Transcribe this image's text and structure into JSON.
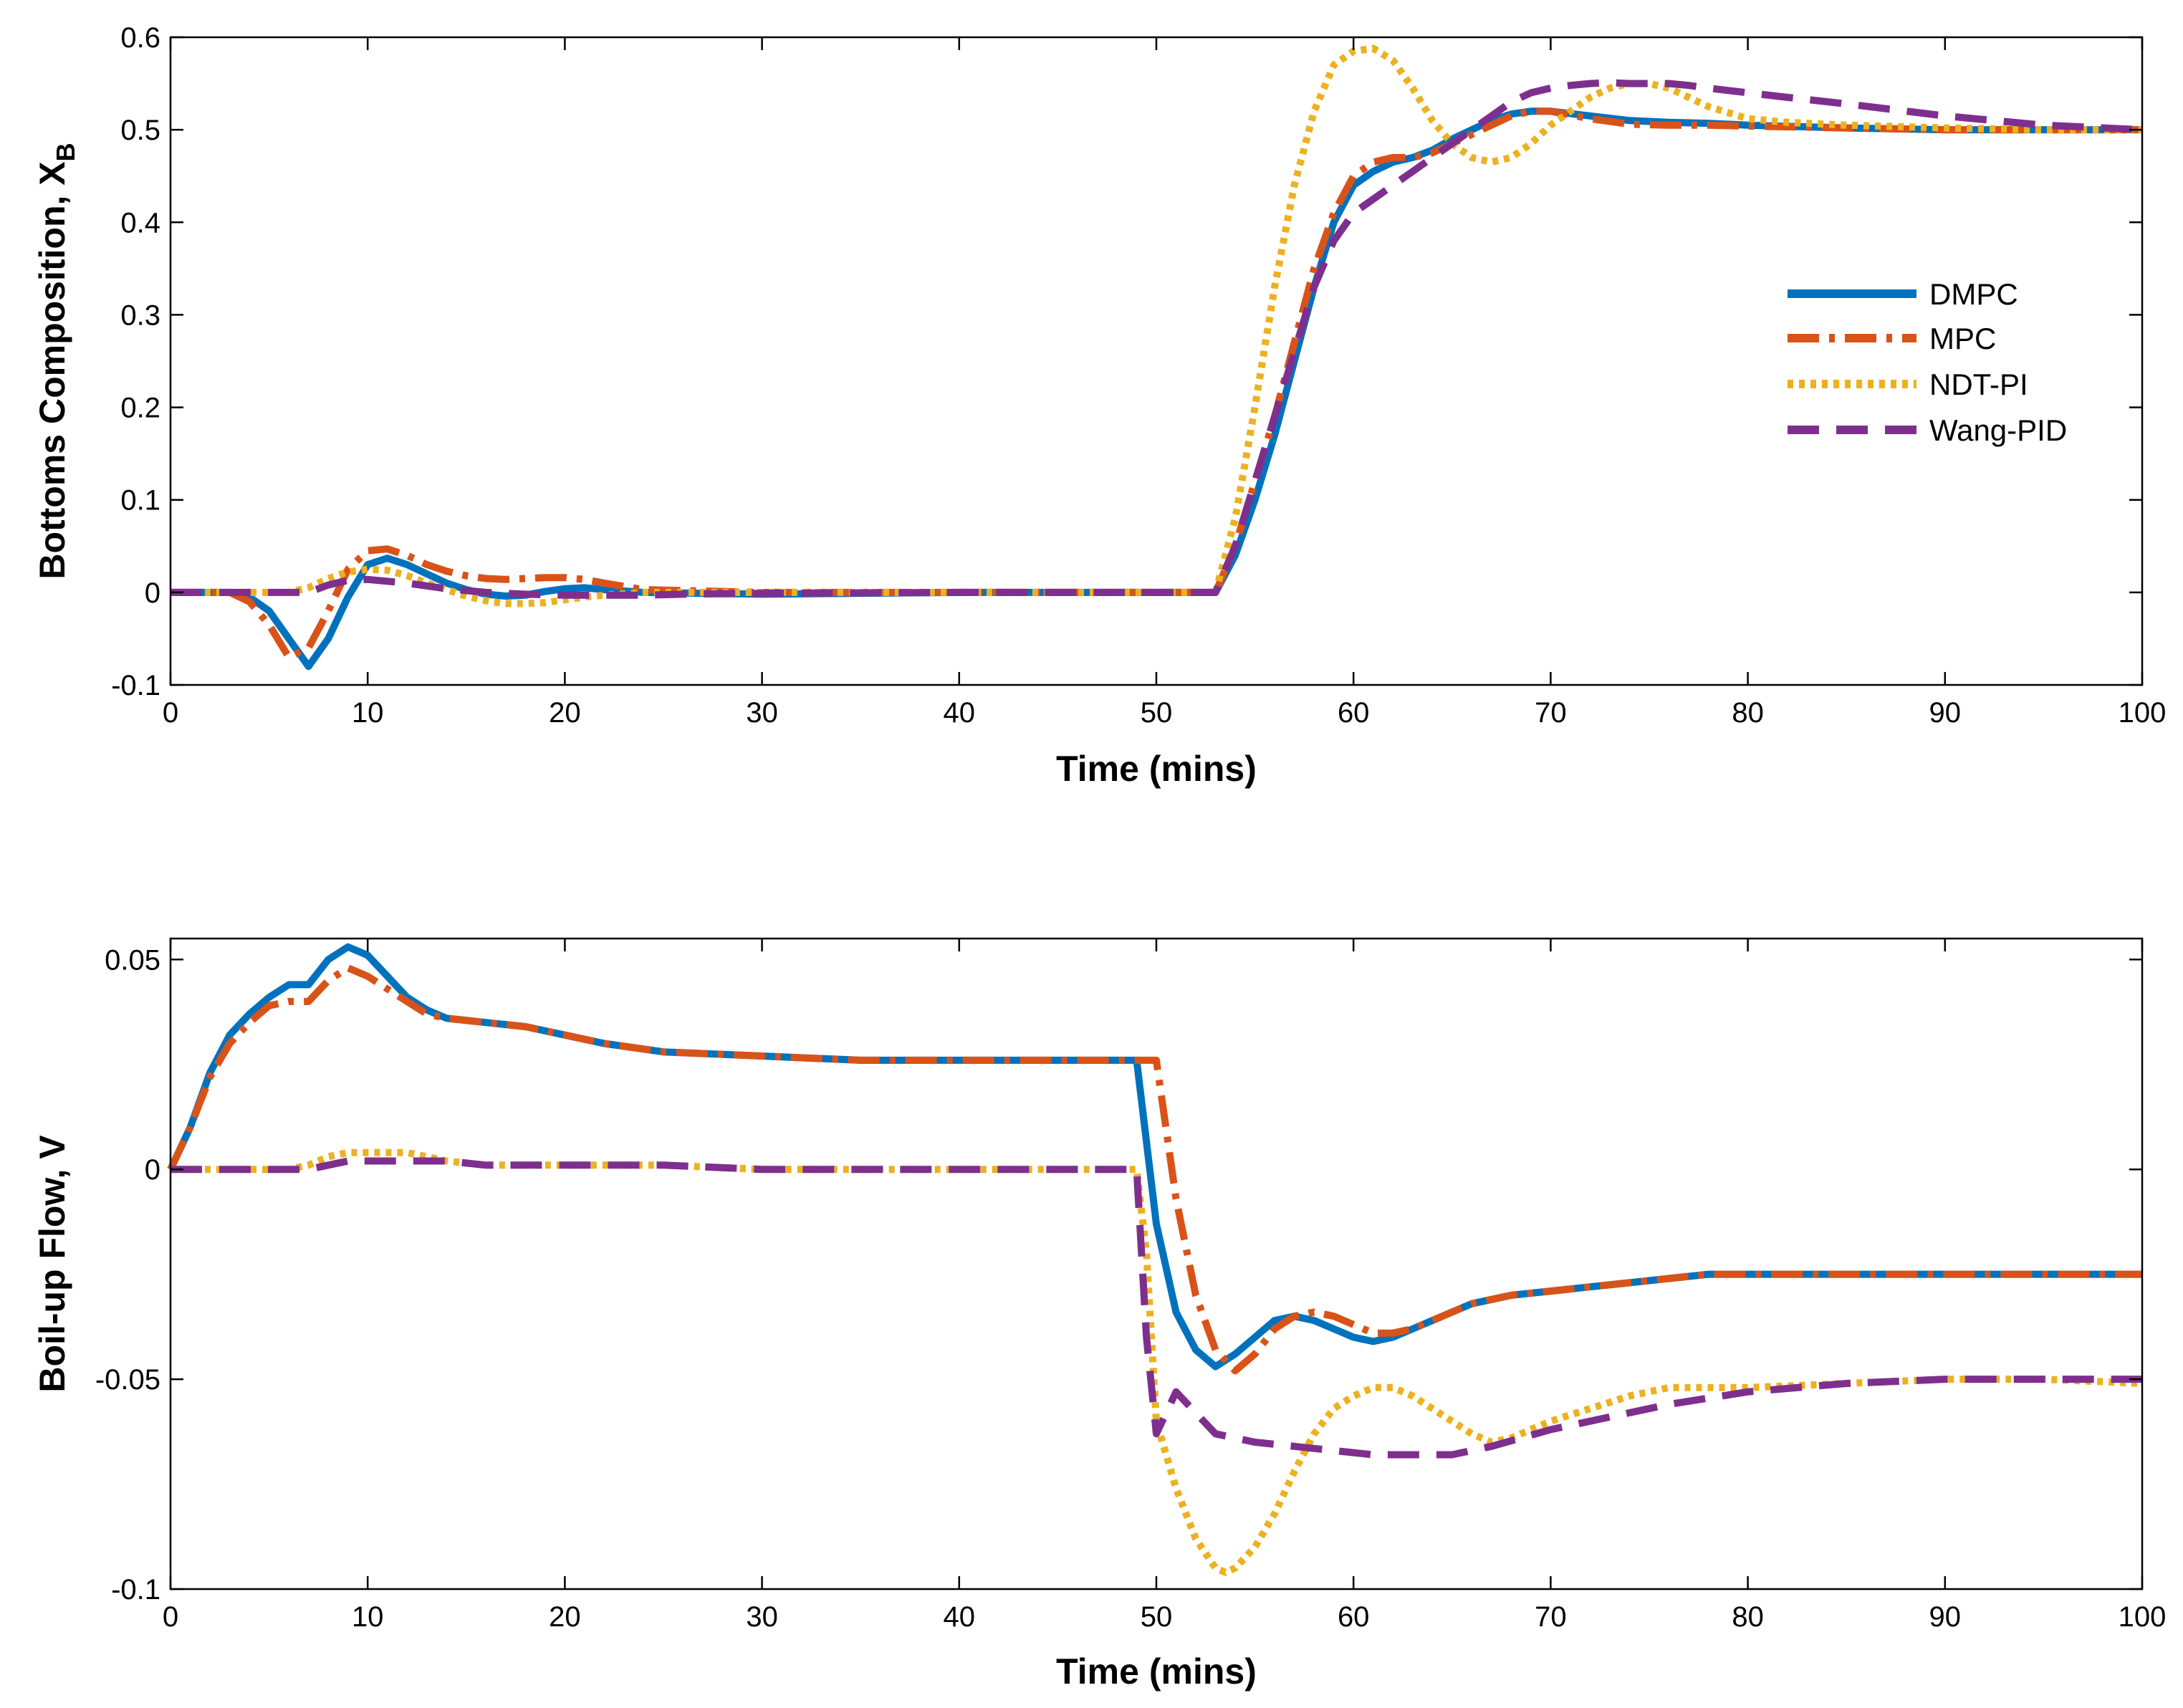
{
  "chart_data": [
    {
      "type": "line",
      "title": "",
      "xlabel": "Time (mins)",
      "ylabel": "Bottoms Composition, X",
      "ylabel_subscript": "B",
      "xlim": [
        0,
        100
      ],
      "ylim": [
        -0.1,
        0.6
      ],
      "xticks": [
        0,
        10,
        20,
        30,
        40,
        50,
        60,
        70,
        80,
        90,
        100
      ],
      "yticks": [
        -0.1,
        0,
        0.1,
        0.2,
        0.3,
        0.4,
        0.5,
        0.6
      ],
      "xtick_labels": [
        "0",
        "10",
        "20",
        "30",
        "40",
        "50",
        "60",
        "70",
        "80",
        "90",
        "100"
      ],
      "ytick_labels": [
        "-0.1",
        "0",
        "0.1",
        "0.2",
        "0.3",
        "0.4",
        "0.5",
        "0.6"
      ],
      "grid": false,
      "legend_position": "right",
      "series": [
        {
          "name": "DMPC",
          "color": "#0072BD",
          "style": "solid",
          "x": [
            0,
            3,
            4,
            5,
            6,
            7,
            8,
            9,
            10,
            11,
            12,
            13,
            14,
            15,
            16,
            17,
            18,
            19,
            20,
            21,
            22,
            24,
            30,
            40,
            53,
            54,
            55,
            56,
            57,
            58,
            59,
            60,
            61,
            62,
            63,
            64,
            65,
            66,
            67,
            68,
            69,
            70,
            72,
            74,
            76,
            78,
            80,
            85,
            90,
            100
          ],
          "y": [
            0,
            0,
            -0.005,
            -0.02,
            -0.05,
            -0.08,
            -0.05,
            -0.005,
            0.03,
            0.037,
            0.03,
            0.02,
            0.01,
            0.003,
            -0.002,
            -0.004,
            -0.003,
            0.001,
            0.004,
            0.005,
            0.003,
            0,
            -0.002,
            0,
            0,
            0.04,
            0.1,
            0.17,
            0.25,
            0.33,
            0.4,
            0.44,
            0.455,
            0.465,
            0.47,
            0.478,
            0.49,
            0.5,
            0.51,
            0.517,
            0.52,
            0.52,
            0.515,
            0.51,
            0.508,
            0.507,
            0.505,
            0.502,
            0.5,
            0.5
          ]
        },
        {
          "name": "MPC",
          "color": "#D95319",
          "style": "dashdot",
          "x": [
            0,
            3,
            4,
            5,
            6,
            7,
            8,
            9,
            10,
            11,
            12,
            13,
            14,
            15,
            16,
            17,
            18,
            19,
            20,
            21,
            22,
            24,
            30,
            40,
            53,
            54,
            55,
            56,
            57,
            58,
            59,
            60,
            61,
            62,
            63,
            64,
            65,
            66,
            67,
            68,
            69,
            70,
            72,
            74,
            76,
            78,
            80,
            85,
            90,
            100
          ],
          "y": [
            0,
            0,
            -0.01,
            -0.035,
            -0.07,
            -0.06,
            -0.02,
            0.025,
            0.045,
            0.047,
            0.04,
            0.03,
            0.023,
            0.018,
            0.015,
            0.014,
            0.015,
            0.016,
            0.016,
            0.014,
            0.01,
            0.003,
            0,
            0,
            0,
            0.05,
            0.12,
            0.19,
            0.27,
            0.35,
            0.41,
            0.45,
            0.465,
            0.47,
            0.47,
            0.475,
            0.485,
            0.495,
            0.505,
            0.515,
            0.52,
            0.52,
            0.512,
            0.506,
            0.505,
            0.505,
            0.504,
            0.502,
            0.5,
            0.5
          ]
        },
        {
          "name": "NDT-PI",
          "color": "#EDB120",
          "style": "dotted",
          "x": [
            0,
            6,
            7,
            8,
            9,
            10,
            11,
            12,
            13,
            14,
            15,
            16,
            17,
            18,
            19,
            20,
            21,
            22,
            24,
            26,
            30,
            40,
            53,
            54,
            55,
            56,
            57,
            58,
            59,
            60,
            61,
            62,
            63,
            64,
            65,
            66,
            67,
            68,
            69,
            70,
            71,
            72,
            73,
            74,
            75,
            76,
            77,
            78,
            80,
            82,
            85,
            90,
            95,
            100
          ],
          "y": [
            0,
            0,
            0.005,
            0.015,
            0.022,
            0.025,
            0.024,
            0.018,
            0.01,
            0.003,
            -0.004,
            -0.009,
            -0.012,
            -0.012,
            -0.011,
            -0.008,
            -0.005,
            -0.003,
            0,
            0,
            0,
            0,
            0,
            0.08,
            0.2,
            0.33,
            0.44,
            0.52,
            0.57,
            0.585,
            0.588,
            0.575,
            0.545,
            0.51,
            0.485,
            0.47,
            0.465,
            0.47,
            0.485,
            0.505,
            0.52,
            0.535,
            0.545,
            0.55,
            0.55,
            0.545,
            0.535,
            0.525,
            0.512,
            0.508,
            0.505,
            0.502,
            0.5,
            0.5
          ]
        },
        {
          "name": "Wang-PID",
          "color": "#7E2F8E",
          "style": "dashed",
          "x": [
            0,
            7,
            8,
            9,
            10,
            12,
            14,
            16,
            18,
            20,
            22,
            24,
            26,
            30,
            40,
            53,
            54,
            55,
            56,
            57,
            58,
            59,
            60,
            61,
            62,
            63,
            64,
            65,
            66,
            67,
            68,
            69,
            70,
            71,
            72,
            73,
            74,
            75,
            76,
            77,
            78,
            80,
            82,
            85,
            90,
            95,
            100
          ],
          "y": [
            0,
            0,
            0.008,
            0.013,
            0.014,
            0.01,
            0.004,
            0,
            -0.002,
            -0.003,
            -0.003,
            -0.003,
            -0.002,
            -0.001,
            0,
            0,
            0.05,
            0.12,
            0.19,
            0.26,
            0.33,
            0.38,
            0.41,
            0.425,
            0.44,
            0.455,
            0.47,
            0.485,
            0.5,
            0.515,
            0.53,
            0.54,
            0.545,
            0.548,
            0.55,
            0.551,
            0.55,
            0.55,
            0.55,
            0.548,
            0.545,
            0.54,
            0.535,
            0.528,
            0.515,
            0.505,
            0.5
          ]
        }
      ]
    },
    {
      "type": "line",
      "title": "",
      "xlabel": "Time (mins)",
      "ylabel": "Boil-up Flow, V",
      "xlim": [
        0,
        100
      ],
      "ylim": [
        -0.1,
        0.055
      ],
      "xticks": [
        0,
        10,
        20,
        30,
        40,
        50,
        60,
        70,
        80,
        90,
        100
      ],
      "yticks": [
        -0.1,
        -0.05,
        0,
        0.05
      ],
      "xtick_labels": [
        "0",
        "10",
        "20",
        "30",
        "40",
        "50",
        "60",
        "70",
        "80",
        "90",
        "100"
      ],
      "ytick_labels": [
        "-0.1",
        "-0.05",
        "0",
        "0.05"
      ],
      "grid": false,
      "series": [
        {
          "name": "DMPC",
          "color": "#0072BD",
          "style": "solid",
          "x": [
            0,
            1,
            2,
            3,
            4,
            5,
            6,
            7,
            8,
            9,
            10,
            11,
            12,
            13,
            14,
            16,
            18,
            20,
            22,
            25,
            30,
            35,
            40,
            45,
            49,
            50,
            51,
            52,
            53,
            54,
            55,
            56,
            57,
            58,
            59,
            60,
            61,
            62,
            63,
            64,
            65,
            66,
            67,
            68,
            70,
            72,
            74,
            76,
            78,
            80,
            85,
            90,
            100
          ],
          "y": [
            0,
            0.01,
            0.023,
            0.032,
            0.037,
            0.041,
            0.044,
            0.044,
            0.05,
            0.053,
            0.051,
            0.046,
            0.041,
            0.038,
            0.036,
            0.035,
            0.034,
            0.032,
            0.03,
            0.028,
            0.027,
            0.026,
            0.026,
            0.026,
            0.026,
            -0.013,
            -0.034,
            -0.043,
            -0.047,
            -0.044,
            -0.04,
            -0.036,
            -0.035,
            -0.036,
            -0.038,
            -0.04,
            -0.041,
            -0.04,
            -0.038,
            -0.036,
            -0.034,
            -0.032,
            -0.031,
            -0.03,
            -0.029,
            -0.028,
            -0.027,
            -0.026,
            -0.025,
            -0.025,
            -0.025,
            -0.025,
            -0.025
          ]
        },
        {
          "name": "MPC",
          "color": "#D95319",
          "style": "dashdot",
          "x": [
            0,
            1,
            2,
            3,
            4,
            5,
            6,
            7,
            8,
            9,
            10,
            11,
            12,
            13,
            14,
            16,
            18,
            20,
            22,
            25,
            30,
            35,
            40,
            45,
            50,
            51,
            52,
            53,
            54,
            55,
            56,
            57,
            58,
            59,
            60,
            61,
            62,
            63,
            64,
            65,
            66,
            67,
            68,
            70,
            72,
            74,
            76,
            78,
            80,
            85,
            90,
            100
          ],
          "y": [
            0,
            0.01,
            0.022,
            0.03,
            0.035,
            0.039,
            0.04,
            0.04,
            0.045,
            0.048,
            0.046,
            0.043,
            0.04,
            0.037,
            0.036,
            0.035,
            0.034,
            0.032,
            0.03,
            0.028,
            0.027,
            0.026,
            0.026,
            0.026,
            0.026,
            -0.007,
            -0.03,
            -0.043,
            -0.048,
            -0.044,
            -0.038,
            -0.035,
            -0.034,
            -0.035,
            -0.037,
            -0.039,
            -0.039,
            -0.038,
            -0.036,
            -0.034,
            -0.032,
            -0.031,
            -0.03,
            -0.029,
            -0.028,
            -0.027,
            -0.026,
            -0.025,
            -0.025,
            -0.025,
            -0.025,
            -0.025
          ]
        },
        {
          "name": "NDT-PI",
          "color": "#EDB120",
          "style": "dotted",
          "x": [
            0,
            6,
            7,
            8,
            9,
            10,
            11,
            12,
            13,
            14,
            16,
            18,
            20,
            25,
            30,
            40,
            49,
            49.5,
            50,
            51,
            52,
            53,
            53.5,
            54,
            55,
            56,
            57,
            58,
            59,
            60,
            61,
            62,
            63,
            64,
            65,
            66,
            67,
            68,
            70,
            72,
            74,
            76,
            78,
            80,
            85,
            90,
            95,
            100
          ],
          "y": [
            0,
            0,
            0.001,
            0.003,
            0.004,
            0.004,
            0.004,
            0.004,
            0.003,
            0.002,
            0.001,
            0.001,
            0.001,
            0.001,
            0,
            0,
            0,
            -0.02,
            -0.06,
            -0.076,
            -0.088,
            -0.095,
            -0.096,
            -0.095,
            -0.09,
            -0.082,
            -0.072,
            -0.063,
            -0.057,
            -0.054,
            -0.052,
            -0.052,
            -0.054,
            -0.057,
            -0.06,
            -0.063,
            -0.065,
            -0.064,
            -0.06,
            -0.057,
            -0.054,
            -0.052,
            -0.052,
            -0.052,
            -0.051,
            -0.05,
            -0.05,
            -0.051
          ]
        },
        {
          "name": "Wang-PID",
          "color": "#7E2F8E",
          "style": "dashed",
          "x": [
            0,
            7,
            8,
            9,
            10,
            12,
            14,
            16,
            18,
            20,
            25,
            30,
            40,
            49,
            49.5,
            50,
            50.5,
            51,
            52,
            53,
            55,
            57,
            59,
            61,
            63,
            65,
            67,
            70,
            73,
            76,
            80,
            85,
            90,
            95,
            100
          ],
          "y": [
            0,
            0,
            0.001,
            0.002,
            0.002,
            0.002,
            0.002,
            0.001,
            0.001,
            0.001,
            0.001,
            0,
            0,
            0,
            -0.04,
            -0.063,
            -0.058,
            -0.053,
            -0.058,
            -0.063,
            -0.065,
            -0.066,
            -0.067,
            -0.068,
            -0.068,
            -0.068,
            -0.066,
            -0.062,
            -0.059,
            -0.056,
            -0.053,
            -0.051,
            -0.05,
            -0.05,
            -0.05
          ]
        }
      ]
    }
  ]
}
